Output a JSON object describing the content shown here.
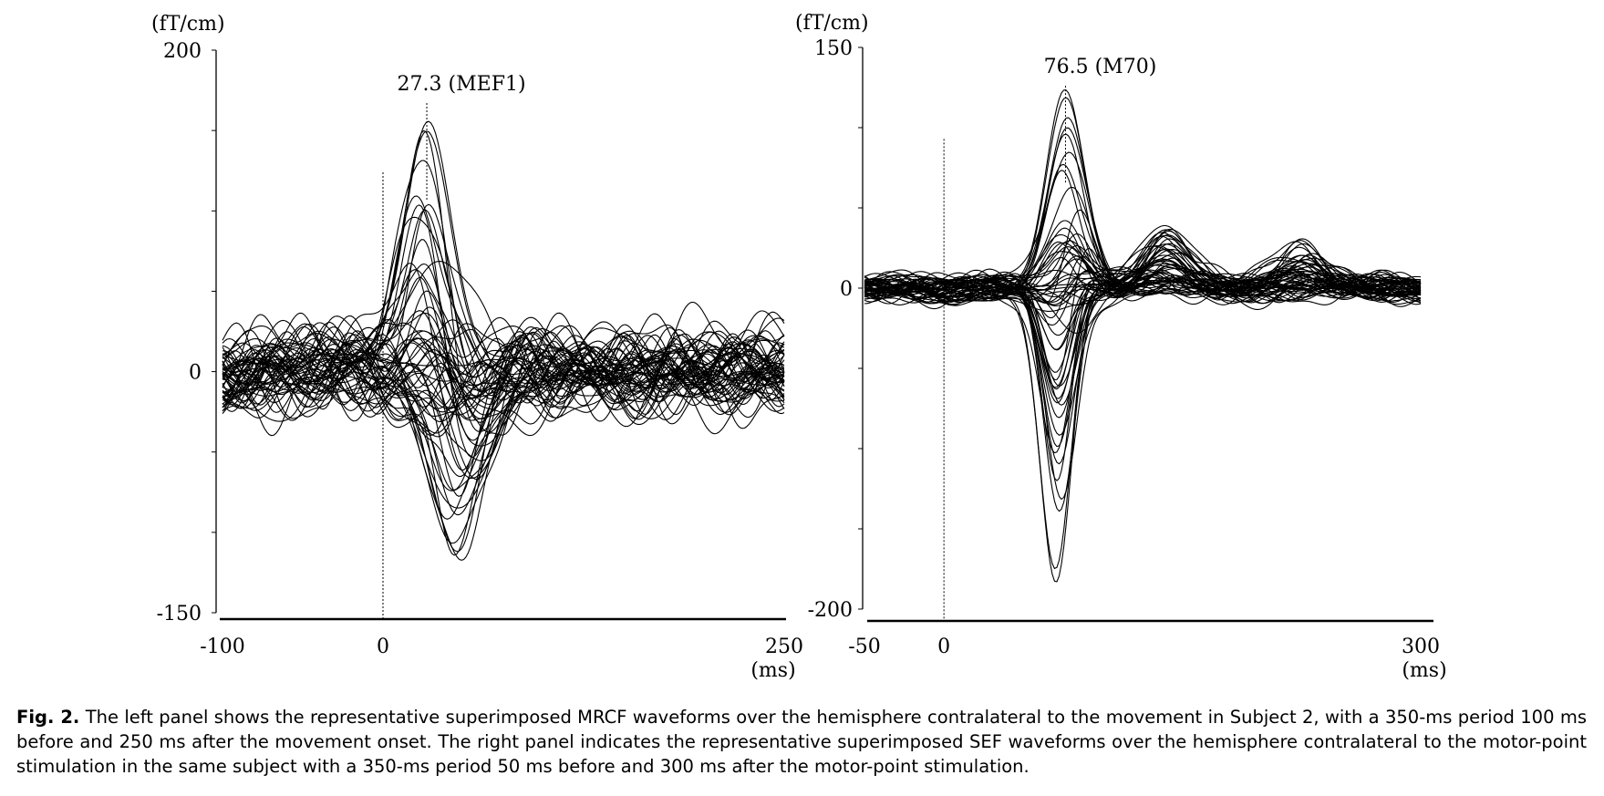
{
  "chart_data": [
    {
      "type": "line",
      "panel": "left",
      "title": "",
      "xlabel": "(ms)",
      "ylabel": "(fT/cm)",
      "xlim": [
        -100,
        250
      ],
      "ylim": [
        -150,
        200
      ],
      "x_tick_labels": [
        "-100",
        "0",
        "250"
      ],
      "y_tick_labels": [
        "200",
        "0",
        "-150"
      ],
      "onset_marker_x": 0,
      "annotation": {
        "text": "27.3 (MEF1)",
        "x": 27.3,
        "y": 158
      },
      "waveform": {
        "channels": 60,
        "baseline_noise": 14,
        "peaks": [
          {
            "latency": 27.3,
            "width": 15,
            "max_amplitude": 158
          },
          {
            "latency": 45,
            "width": 18,
            "max_amplitude": -130
          }
        ]
      }
    },
    {
      "type": "line",
      "panel": "right",
      "title": "",
      "xlabel": "(ms)",
      "ylabel": "(fT/cm)",
      "xlim": [
        -50,
        300
      ],
      "ylim": [
        -200,
        150
      ],
      "x_tick_labels": [
        "-50",
        "0",
        "300"
      ],
      "y_tick_labels": [
        "150",
        "0",
        "-200"
      ],
      "onset_marker_x": 0,
      "annotation": {
        "text": "76.5 (M70)",
        "x": 76.5,
        "y": 117
      },
      "waveform": {
        "channels": 60,
        "baseline_noise": 5,
        "peaks": [
          {
            "latency": 76.5,
            "width": 12,
            "max_amplitude": 117
          },
          {
            "latency": 72,
            "width": 10,
            "max_amplitude": -200
          },
          {
            "latency": 140,
            "width": 14,
            "max_amplitude": 40
          },
          {
            "latency": 225,
            "width": 16,
            "max_amplitude": 25
          }
        ]
      }
    }
  ],
  "caption": {
    "label": "Fig. 2.",
    "text": "The left panel shows the representative superimposed MRCF waveforms over the hemisphere contralateral to the movement in Subject 2, with a 350-ms period 100 ms before and 250 ms after the movement onset. The right panel indicates the representative superimposed SEF waveforms over the hemisphere contralateral to the motor-point stimulation in the same subject with a 350-ms period 50 ms before and 300 ms after the motor-point stimulation."
  }
}
